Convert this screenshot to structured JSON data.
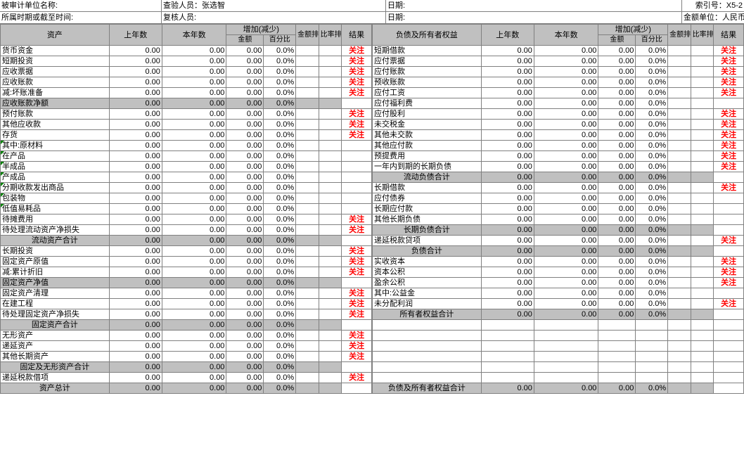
{
  "header": {
    "unit_label": "被审计单位名称:",
    "inspector_label": "查验人员：",
    "inspector_value": "张选智",
    "date_label": "日期:",
    "index_label": "索引号：",
    "index_value": "X5-2",
    "period_label": "所属时期或截至时间:",
    "reviewer_label": "复核人员:",
    "unit2_label": "金额单位：",
    "unit2_value": "人民币元"
  },
  "columns": {
    "asset": "资产",
    "liab": "负债及所有者权益",
    "prev": "上年数",
    "curr": "本年数",
    "change": "增加(减少)",
    "amount": "金额",
    "percent": "百分比",
    "amount_sort": "金额排序",
    "ratio_sort": "比率排序",
    "result": "结果"
  },
  "attention": "关注",
  "val00": "0.00",
  "pct0": "0.0%",
  "left_rows": [
    {
      "label": "货币资金",
      "att": 1
    },
    {
      "label": "短期投资",
      "att": 1
    },
    {
      "label": "应收票据",
      "att": 1
    },
    {
      "label": "应收账款",
      "att": 1
    },
    {
      "label": "减:坏账准备",
      "att": 1
    },
    {
      "label": "应收账款净额",
      "att": 0,
      "gray": 1
    },
    {
      "label": "预付账款",
      "att": 1
    },
    {
      "label": "其他应收款",
      "att": 1
    },
    {
      "label": "存货",
      "att": 1
    },
    {
      "label": "其中:原材料",
      "att": 0,
      "tri": 1
    },
    {
      "label": "   在产品",
      "att": 0,
      "tri": 1
    },
    {
      "label": "   半成品",
      "att": 0,
      "tri": 1
    },
    {
      "label": "   产成品",
      "att": 0,
      "tri": 1
    },
    {
      "label": "   分期收款发出商品",
      "att": 0,
      "tri": 1
    },
    {
      "label": "   包装物",
      "att": 0,
      "tri": 1
    },
    {
      "label": "   低值易耗品",
      "att": 0,
      "tri": 1
    },
    {
      "label": "待摊费用",
      "att": 1
    },
    {
      "label": "待处理流动资产净损失",
      "att": 1
    },
    {
      "label": "流动资产合计",
      "att": 0,
      "gray": 1,
      "center": 1
    },
    {
      "label": "长期投资",
      "att": 1
    },
    {
      "label": "固定资产原值",
      "att": 1
    },
    {
      "label": "减:累计折旧",
      "att": 1
    },
    {
      "label": "固定资产净值",
      "att": 0,
      "gray": 1
    },
    {
      "label": "固定资产清理",
      "att": 1
    },
    {
      "label": "在建工程",
      "att": 1
    },
    {
      "label": "待处理固定资产净损失",
      "att": 1
    },
    {
      "label": "固定资产合计",
      "att": 0,
      "gray": 1,
      "center": 1
    },
    {
      "label": "无形资产",
      "att": 1
    },
    {
      "label": "递延资产",
      "att": 1
    },
    {
      "label": "其他长期资产",
      "att": 1
    },
    {
      "label": "固定及无形资产合计",
      "att": 0,
      "gray": 1,
      "center": 1
    },
    {
      "label": "递延税款借项",
      "att": 1
    },
    {
      "label": "资产总计",
      "att": 0,
      "gray": 1,
      "center": 1
    }
  ],
  "right_rows": [
    {
      "label": "短期借款",
      "att": 1
    },
    {
      "label": "应付票据",
      "att": 1
    },
    {
      "label": "应付账款",
      "att": 1
    },
    {
      "label": "预收账款",
      "att": 1
    },
    {
      "label": "应付工资",
      "att": 1
    },
    {
      "label": "应付福利费",
      "att": 0
    },
    {
      "label": "应付股利",
      "att": 1
    },
    {
      "label": "未交税金",
      "att": 1
    },
    {
      "label": "其他未交款",
      "att": 1
    },
    {
      "label": "其他应付款",
      "att": 1
    },
    {
      "label": "预提费用",
      "att": 1
    },
    {
      "label": "一年内到期的长期负债",
      "att": 1
    },
    {
      "label": "流动负债合计",
      "att": 0,
      "gray": 1,
      "center": 1
    },
    {
      "label": "长期借款",
      "att": 1
    },
    {
      "label": "应付债券",
      "att": 0
    },
    {
      "label": "长期应付款",
      "att": 0
    },
    {
      "label": "其他长期负债",
      "att": 0
    },
    {
      "label": "长期负债合计",
      "att": 0,
      "gray": 1,
      "center": 1
    },
    {
      "label": "递延税款贷项",
      "att": 1
    },
    {
      "label": "负债合计",
      "att": 0,
      "gray": 1,
      "center": 1
    },
    {
      "label": "实收资本",
      "att": 1
    },
    {
      "label": "资本公积",
      "att": 1
    },
    {
      "label": "盈余公积",
      "att": 1
    },
    {
      "label": "其中:公益金",
      "att": 0
    },
    {
      "label": "未分配利润",
      "att": 1
    },
    {
      "label": "所有者权益合计",
      "att": 0,
      "gray": 1,
      "center": 1
    },
    {
      "label": "",
      "empty": 1
    },
    {
      "label": "",
      "empty": 1
    },
    {
      "label": "",
      "empty": 1
    },
    {
      "label": "",
      "empty": 1
    },
    {
      "label": "",
      "empty": 1
    },
    {
      "label": "",
      "empty": 1
    },
    {
      "label": "负债及所有者权益合计",
      "att": 0,
      "gray": 1,
      "center": 1
    }
  ]
}
